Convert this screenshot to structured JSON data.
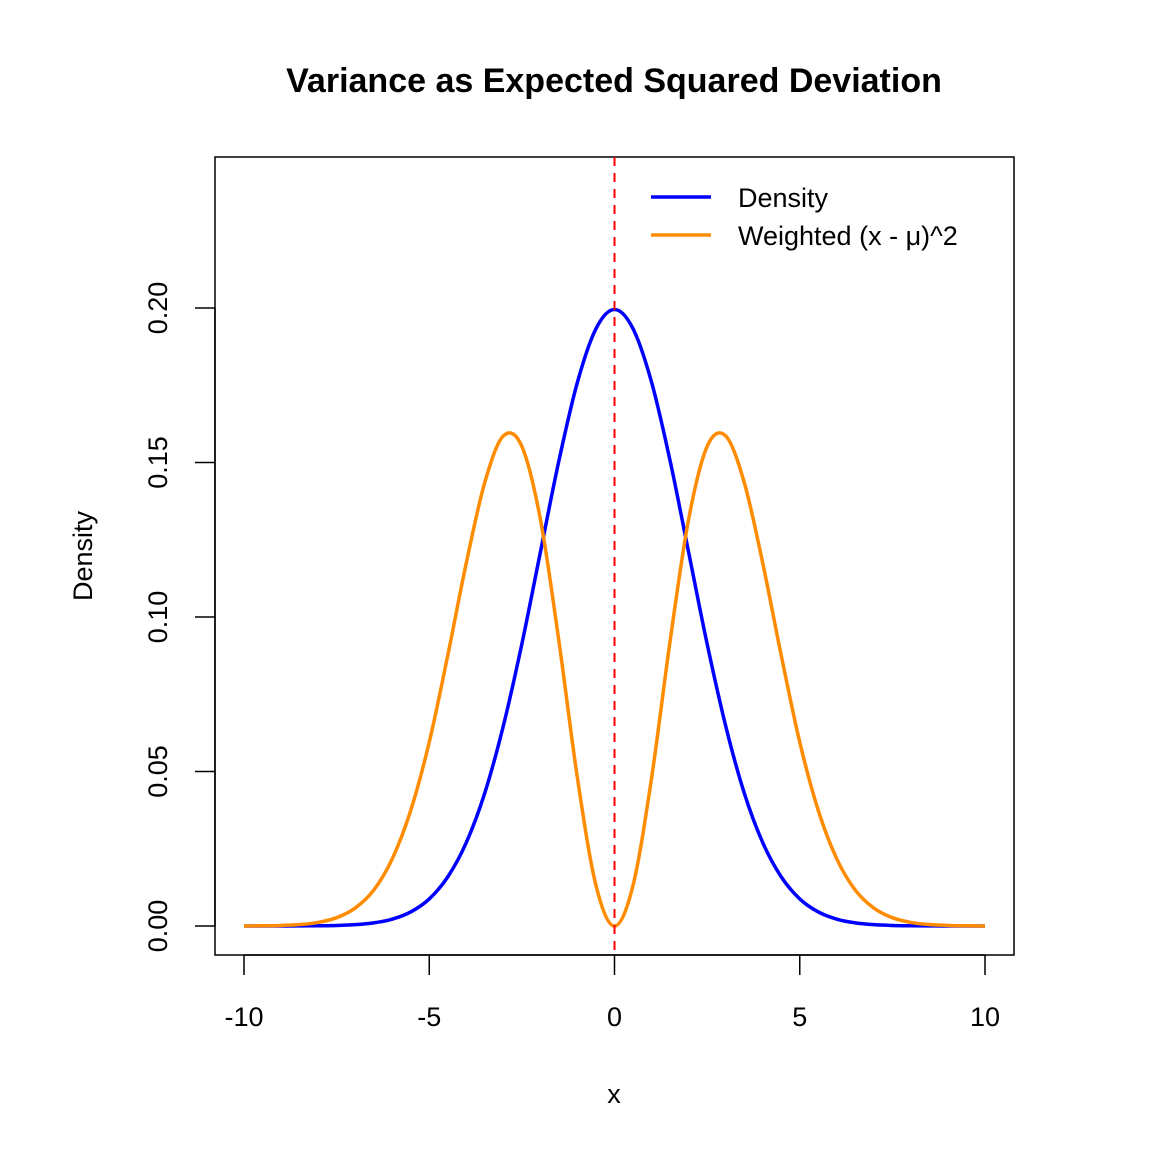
{
  "chart_data": {
    "type": "line",
    "title": "Variance as Expected Squared Deviation",
    "xlabel": "x",
    "ylabel": "Density",
    "xlim": [
      -10,
      10
    ],
    "ylim": [
      0,
      0.2394
    ],
    "x_ticks": [
      "-10",
      "-5",
      "0",
      "5",
      "10"
    ],
    "x_tick_values": [
      -10,
      -5,
      0,
      5,
      10
    ],
    "y_ticks": [
      "0.00",
      "0.05",
      "0.10",
      "0.15",
      "0.20"
    ],
    "y_tick_values": [
      0,
      0.05,
      0.1,
      0.15,
      0.2
    ],
    "grid": false,
    "legend_position": "top-right",
    "mean_line": {
      "x": 0,
      "color": "#ff0000",
      "style": "dashed"
    },
    "x": [
      -10,
      -9.5,
      -9,
      -8.5,
      -8,
      -7.5,
      -7,
      -6.5,
      -6,
      -5.5,
      -5,
      -4.5,
      -4,
      -3.5,
      -3,
      -2.5,
      -2,
      -1.5,
      -1,
      -0.5,
      0,
      0.5,
      1,
      1.5,
      2,
      2.5,
      3,
      3.5,
      4,
      4.5,
      5,
      5.5,
      6,
      6.5,
      7,
      7.5,
      8,
      8.5,
      9,
      9.5,
      10
    ],
    "series": [
      {
        "name": "Density",
        "color": "#0000ff",
        "values": [
          7e-07,
          2.6e-06,
          8e-06,
          2.4e-05,
          6.69e-05,
          0.000176,
          0.000436,
          0.00101,
          0.00222,
          0.00455,
          0.00876,
          0.0159,
          0.027,
          0.0431,
          0.0648,
          0.0913,
          0.121,
          0.1506,
          0.176,
          0.1933,
          0.1995,
          0.1933,
          0.176,
          0.1506,
          0.121,
          0.0913,
          0.0648,
          0.0431,
          0.027,
          0.0159,
          0.00876,
          0.00455,
          0.00222,
          0.00101,
          0.000436,
          0.000176,
          6.69e-05,
          2.4e-05,
          8e-06,
          2.6e-06,
          7e-07
        ]
      },
      {
        "name": "Weighted (x - μ)^2",
        "color": "#ff8c00",
        "values": [
          1.9e-05,
          6.26e-05,
          0.00018,
          0.00047,
          0.00116,
          0.00269,
          0.00581,
          0.0116,
          0.0217,
          0.0374,
          0.0595,
          0.0876,
          0.1175,
          0.1436,
          0.1586,
          0.1552,
          0.1316,
          0.09214,
          0.04786,
          0.01314,
          0,
          0.01314,
          0.04786,
          0.09214,
          0.1316,
          0.1552,
          0.1586,
          0.1436,
          0.1175,
          0.0876,
          0.0595,
          0.0374,
          0.0217,
          0.0116,
          0.00581,
          0.00269,
          0.00116,
          0.00047,
          0.00018,
          6.26e-05,
          1.9e-05
        ]
      }
    ]
  }
}
